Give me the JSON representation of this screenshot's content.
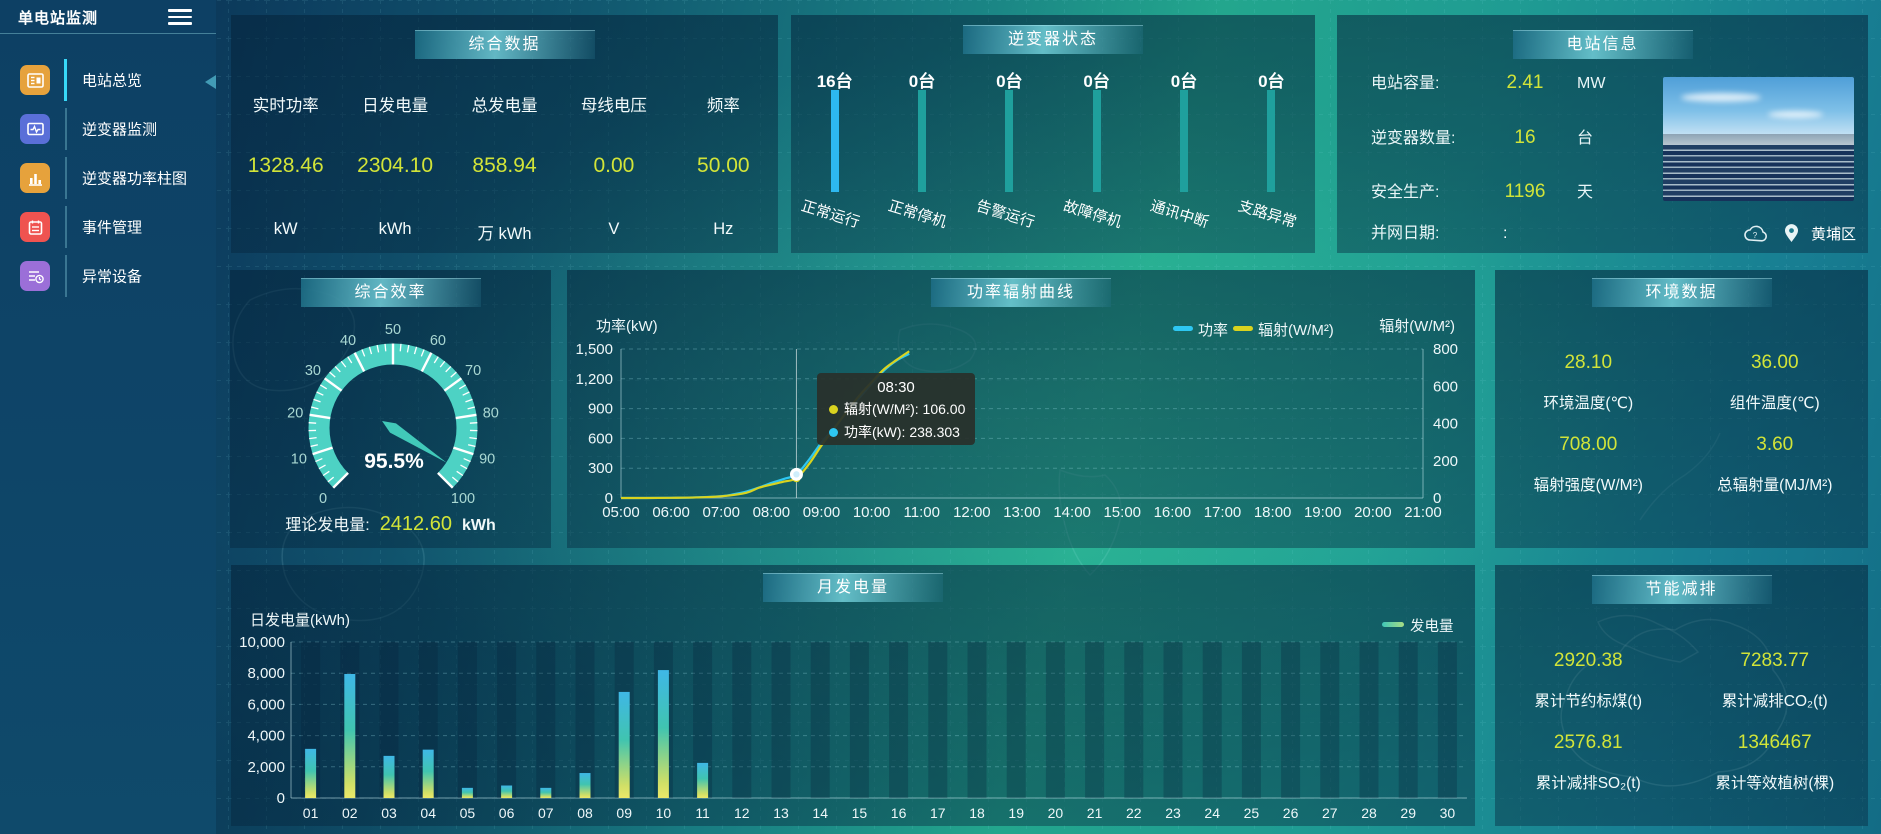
{
  "app": {
    "title": "单电站监测"
  },
  "sidebar": {
    "items": [
      {
        "label": "电站总览",
        "icon": "overview-doc-icon",
        "color": "#e6a23c",
        "active": true
      },
      {
        "label": "逆变器监测",
        "icon": "inverter-monitor-icon",
        "color": "#5a6fd8",
        "active": false
      },
      {
        "label": "逆变器功率柱图",
        "icon": "power-bars-icon",
        "color": "#e6a23c",
        "active": false
      },
      {
        "label": "事件管理",
        "icon": "event-notebook-icon",
        "color": "#ef5350",
        "active": false
      },
      {
        "label": "异常设备",
        "icon": "abnormal-device-icon",
        "color": "#9b6fd8",
        "active": false
      }
    ]
  },
  "summary": {
    "title": "综合数据",
    "metrics": [
      {
        "label": "实时功率",
        "value": "1328.46",
        "unit": "kW"
      },
      {
        "label": "日发电量",
        "value": "2304.10",
        "unit": "kWh"
      },
      {
        "label": "总发电量",
        "value": "858.94",
        "unit": "万 kWh"
      },
      {
        "label": "母线电压",
        "value": "0.00",
        "unit": "V"
      },
      {
        "label": "频率",
        "value": "50.00",
        "unit": "Hz"
      }
    ]
  },
  "inverter_status": {
    "title": "逆变器状态",
    "bar_color": "#1fa09d",
    "highlight_color": "#2db8f0",
    "items": [
      {
        "count": "16台",
        "label": "正常运行",
        "highlight": true
      },
      {
        "count": "0台",
        "label": "正常停机",
        "highlight": false
      },
      {
        "count": "0台",
        "label": "告警运行",
        "highlight": false
      },
      {
        "count": "0台",
        "label": "故障停机",
        "highlight": false
      },
      {
        "count": "0台",
        "label": "通讯中断",
        "highlight": false
      },
      {
        "count": "0台",
        "label": "支路异常",
        "highlight": false
      }
    ]
  },
  "station_info": {
    "title": "电站信息",
    "rows": [
      {
        "label": "电站容量:",
        "value": "2.41",
        "unit": "MW"
      },
      {
        "label": "逆变器数量:",
        "value": "16",
        "unit": "台"
      },
      {
        "label": "安全生产:",
        "value": "1196",
        "unit": "天"
      },
      {
        "label": "并网日期:",
        "value": ":",
        "unit": ""
      }
    ],
    "location": "黄埔区"
  },
  "efficiency": {
    "title": "综合效率",
    "value": 95.5,
    "display": "95.5%",
    "min": 0,
    "max": 100,
    "major_tick": 10,
    "theory_label": "理论发电量:",
    "theory_value": "2412.60",
    "theory_unit": "kWh"
  },
  "environment": {
    "title": "环境数据",
    "cells": [
      {
        "value": "28.10",
        "label": "环境温度(℃)"
      },
      {
        "value": "36.00",
        "label": "组件温度(℃)"
      },
      {
        "value": "708.00",
        "label": "辐射强度(W/M²)"
      },
      {
        "value": "3.60",
        "label": "总辐射量(MJ/M²)"
      }
    ]
  },
  "savings": {
    "title": "节能减排",
    "cells": [
      {
        "value": "2920.38",
        "label": "累计节约标煤(t)"
      },
      {
        "value": "7283.77",
        "label": "累计减排CO₂(t)"
      },
      {
        "value": "2576.81",
        "label": "累计减排SO₂(t)"
      },
      {
        "value": "1346467",
        "label": "累计等效植树(棵)"
      }
    ]
  },
  "chart_data": [
    {
      "type": "line",
      "title": "功率辐射曲线",
      "x_labels": [
        "05:00",
        "06:00",
        "07:00",
        "08:00",
        "09:00",
        "10:00",
        "11:00",
        "12:00",
        "13:00",
        "14:00",
        "15:00",
        "16:00",
        "17:00",
        "18:00",
        "19:00",
        "20:00",
        "21:00"
      ],
      "x_min": 5,
      "x_max": 21,
      "left_axis": {
        "name": "功率(kW)",
        "max": 1500,
        "ticks": [
          "0",
          "300",
          "600",
          "900",
          "1,200",
          "1,500"
        ]
      },
      "right_axis": {
        "name": "辐射(W/M²)",
        "max": 800,
        "ticks": [
          "0",
          "200",
          "400",
          "600",
          "800"
        ]
      },
      "legend": [
        "功率",
        "辐射(W/M²)"
      ],
      "series": [
        {
          "name": "功率",
          "color": "#2ec7f2",
          "axis": "left",
          "points": [
            [
              5,
              0
            ],
            [
              5.5,
              0
            ],
            [
              6,
              2
            ],
            [
              6.5,
              6
            ],
            [
              7,
              18
            ],
            [
              7.25,
              38
            ],
            [
              7.5,
              65
            ],
            [
              7.75,
              105
            ],
            [
              8,
              152
            ],
            [
              8.25,
              192
            ],
            [
              8.5,
              238.3
            ],
            [
              8.75,
              385
            ],
            [
              9,
              560
            ],
            [
              9.25,
              705
            ],
            [
              9.5,
              860
            ],
            [
              9.75,
              1005
            ],
            [
              10,
              1150
            ],
            [
              10.25,
              1285
            ],
            [
              10.5,
              1385
            ],
            [
              10.75,
              1452
            ]
          ]
        },
        {
          "name": "辐射(W/M²)",
          "color": "#d9d31f",
          "axis": "right",
          "points": [
            [
              5,
              0
            ],
            [
              5.5,
              0
            ],
            [
              6,
              1
            ],
            [
              6.5,
              3
            ],
            [
              7,
              9
            ],
            [
              7.5,
              28
            ],
            [
              7.75,
              55
            ],
            [
              8,
              72
            ],
            [
              8.25,
              88
            ],
            [
              8.5,
              106
            ],
            [
              8.75,
              182
            ],
            [
              9,
              282
            ],
            [
              9.25,
              372
            ],
            [
              9.5,
              462
            ],
            [
              9.75,
              548
            ],
            [
              10,
              622
            ],
            [
              10.25,
              692
            ],
            [
              10.5,
              742
            ],
            [
              10.75,
              788
            ]
          ]
        }
      ],
      "tooltip": {
        "time": "08:30",
        "x": 8.5,
        "rows": [
          {
            "name": "辐射(W/M²)",
            "value": "106.00",
            "color": "#d9d31f"
          },
          {
            "name": "功率(kW)",
            "value": "238.303",
            "color": "#2ec7f2"
          }
        ]
      }
    },
    {
      "type": "bar",
      "title": "月发电量",
      "ylabel": "日发电量(kWh)",
      "legend": "发电量",
      "ymax": 10000,
      "yticks": [
        "0",
        "2,000",
        "4,000",
        "6,000",
        "8,000",
        "10,000"
      ],
      "categories": [
        "01",
        "02",
        "03",
        "04",
        "05",
        "06",
        "07",
        "08",
        "09",
        "10",
        "11",
        "12",
        "13",
        "14",
        "15",
        "16",
        "17",
        "18",
        "19",
        "20",
        "21",
        "22",
        "23",
        "24",
        "25",
        "26",
        "27",
        "28",
        "29",
        "30"
      ],
      "values": [
        3150,
        7950,
        2700,
        3100,
        650,
        800,
        650,
        1600,
        6800,
        8200,
        2250,
        0,
        0,
        0,
        0,
        0,
        0,
        0,
        0,
        0,
        0,
        0,
        0,
        0,
        0,
        0,
        0,
        0,
        0,
        0
      ]
    },
    {
      "type": "gauge",
      "title": "综合效率",
      "value": 95.5,
      "min": 0,
      "max": 100
    }
  ]
}
